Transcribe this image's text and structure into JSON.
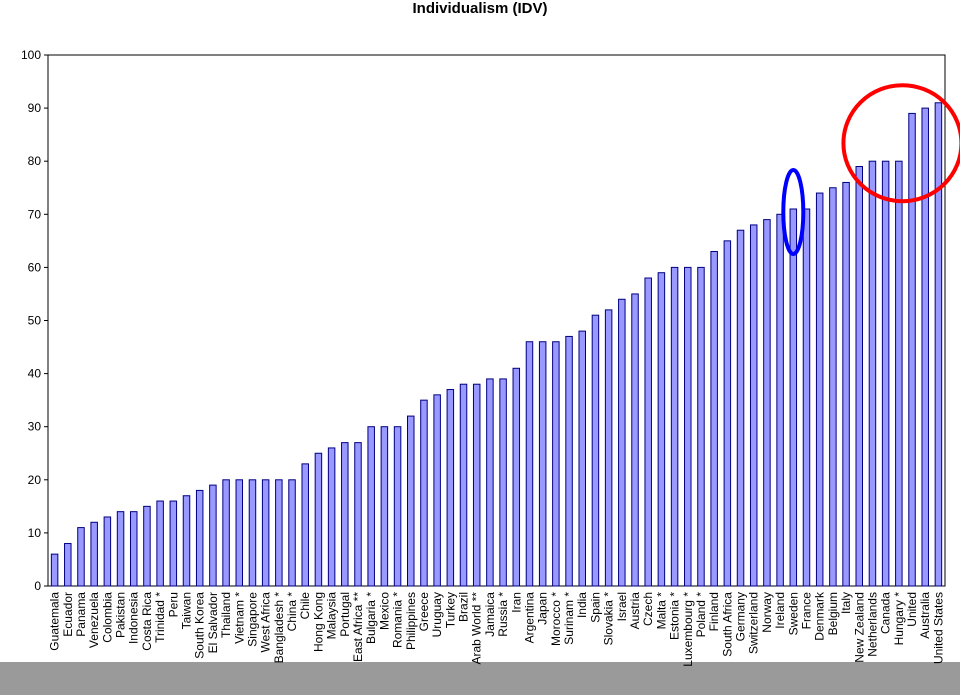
{
  "chart_data": {
    "type": "bar",
    "title": "Individualism (IDV)",
    "xlabel": "",
    "ylabel": "",
    "ylim": [
      0,
      100
    ],
    "yticks": [
      0,
      10,
      20,
      30,
      40,
      50,
      60,
      70,
      80,
      90,
      100
    ],
    "grid": false,
    "legend": "none",
    "categories": [
      "Guatemala",
      "Ecuador",
      "Panama",
      "Venezuela",
      "Colombia",
      "Pakistan",
      "Indonesia",
      "Costa Rica",
      "Trinidad *",
      "Peru",
      "Taiwan",
      "South Korea",
      "El Salvador",
      "Thailand",
      "Vietnam *",
      "Singapore",
      "West Africa",
      "Bangladesh *",
      "China *",
      "Chile",
      "Hong Kong",
      "Malaysia",
      "Portugal",
      "East Africa **",
      "Bulgaria *",
      "Mexico",
      "Romania *",
      "Philippines",
      "Greece",
      "Uruguay",
      "Turkey",
      "Brazil",
      "Arab World **",
      "Jamaica",
      "Russia *",
      "Iran",
      "Argentina",
      "Japan",
      "Morocco *",
      "Surinam *",
      "India",
      "Spain",
      "Slovakia *",
      "Israel",
      "Austria",
      "Czech",
      "Malta *",
      "Estonia *",
      "Luxembourg *",
      "Poland *",
      "Finland",
      "South Africa",
      "Germany",
      "Switzerland",
      "Norway",
      "Ireland",
      "Sweden",
      "France",
      "Denmark",
      "Belgium",
      "Italy",
      "New Zealand",
      "Netherlands",
      "Canada",
      "Hungary *",
      "United",
      "Australia",
      "United States"
    ],
    "values": [
      6,
      8,
      11,
      12,
      13,
      14,
      14,
      15,
      16,
      16,
      17,
      18,
      19,
      20,
      20,
      20,
      20,
      20,
      20,
      23,
      25,
      26,
      27,
      27,
      30,
      30,
      30,
      32,
      35,
      36,
      37,
      38,
      38,
      39,
      39,
      41,
      46,
      46,
      46,
      47,
      48,
      51,
      52,
      54,
      55,
      58,
      59,
      60,
      60,
      60,
      63,
      65,
      67,
      68,
      69,
      70,
      71,
      71,
      74,
      75,
      76,
      79,
      80,
      80,
      80,
      89,
      90,
      91
    ],
    "colors": {
      "bar_fill": "#9999ff",
      "bar_stroke": "#000080",
      "plot_bg": "#ffffff",
      "bottom_band": "#9a9a9a",
      "blue_annotation": "#0000ff",
      "red_annotation": "#ff0000"
    },
    "annotations": [
      {
        "shape": "ellipse",
        "color": "blue",
        "around": [
          "Sweden"
        ]
      },
      {
        "shape": "circle",
        "color": "red",
        "around": [
          "Netherlands",
          "Canada",
          "Hungary *",
          "United",
          "Australia",
          "United States"
        ]
      }
    ]
  }
}
